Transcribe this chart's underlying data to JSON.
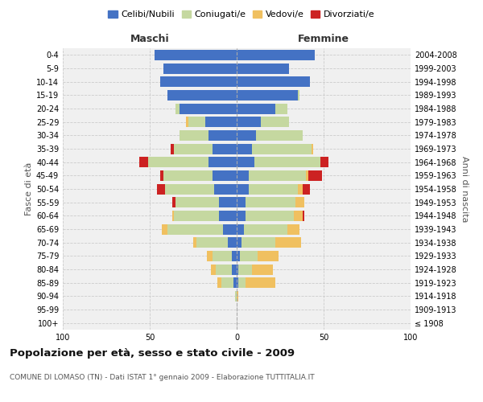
{
  "age_groups": [
    "100+",
    "95-99",
    "90-94",
    "85-89",
    "80-84",
    "75-79",
    "70-74",
    "65-69",
    "60-64",
    "55-59",
    "50-54",
    "45-49",
    "40-44",
    "35-39",
    "30-34",
    "25-29",
    "20-24",
    "15-19",
    "10-14",
    "5-9",
    "0-4"
  ],
  "birth_years": [
    "≤ 1908",
    "1909-1913",
    "1914-1918",
    "1919-1923",
    "1924-1928",
    "1929-1933",
    "1934-1938",
    "1939-1943",
    "1944-1948",
    "1949-1953",
    "1954-1958",
    "1959-1963",
    "1964-1968",
    "1969-1973",
    "1974-1978",
    "1979-1983",
    "1984-1988",
    "1989-1993",
    "1994-1998",
    "1999-2003",
    "2004-2008"
  ],
  "maschi": {
    "celibi": [
      0,
      0,
      0,
      2,
      3,
      3,
      5,
      8,
      10,
      10,
      13,
      14,
      16,
      14,
      16,
      18,
      33,
      40,
      44,
      42,
      47
    ],
    "coniugati": [
      0,
      0,
      1,
      7,
      9,
      11,
      18,
      32,
      26,
      25,
      28,
      28,
      35,
      22,
      17,
      10,
      2,
      0,
      0,
      0,
      0
    ],
    "vedovi": [
      0,
      0,
      0,
      2,
      3,
      3,
      2,
      3,
      1,
      0,
      0,
      0,
      0,
      0,
      0,
      1,
      0,
      0,
      0,
      0,
      0
    ],
    "divorziati": [
      0,
      0,
      0,
      0,
      0,
      0,
      0,
      0,
      0,
      2,
      5,
      2,
      5,
      2,
      0,
      0,
      0,
      0,
      0,
      0,
      0
    ]
  },
  "femmine": {
    "nubili": [
      0,
      0,
      0,
      1,
      1,
      2,
      3,
      4,
      5,
      5,
      7,
      7,
      10,
      9,
      11,
      14,
      22,
      35,
      42,
      30,
      45
    ],
    "coniugate": [
      0,
      0,
      0,
      4,
      8,
      10,
      19,
      25,
      28,
      29,
      28,
      33,
      38,
      34,
      27,
      16,
      7,
      1,
      0,
      0,
      0
    ],
    "vedove": [
      0,
      0,
      1,
      17,
      12,
      12,
      15,
      7,
      5,
      5,
      3,
      1,
      0,
      1,
      0,
      0,
      0,
      0,
      0,
      0,
      0
    ],
    "divorziate": [
      0,
      0,
      0,
      0,
      0,
      0,
      0,
      0,
      1,
      0,
      4,
      8,
      5,
      0,
      0,
      0,
      0,
      0,
      0,
      0,
      0
    ]
  },
  "colors": {
    "celibi": "#4472C4",
    "coniugati": "#C5D8A0",
    "vedovi": "#F0C060",
    "divorziati": "#CC2222"
  },
  "title": "Popolazione per età, sesso e stato civile - 2009",
  "subtitle": "COMUNE DI LOMASO (TN) - Dati ISTAT 1° gennaio 2009 - Elaborazione TUTTITALIA.IT",
  "xlabel_left": "Maschi",
  "xlabel_right": "Femmine",
  "ylabel_left": "Fasce di età",
  "ylabel_right": "Anni di nascita",
  "xlim": 100,
  "legend_labels": [
    "Celibi/Nubili",
    "Coniugati/e",
    "Vedovi/e",
    "Divorziati/e"
  ],
  "background_color": "#ffffff",
  "plot_bg": "#f0f0f0"
}
